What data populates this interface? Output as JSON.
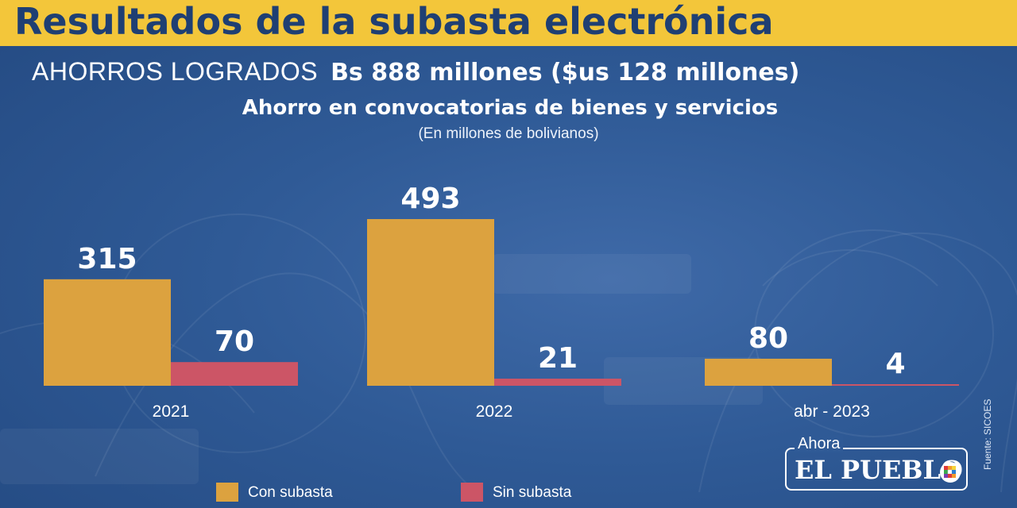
{
  "banner": {
    "title": "Resultados de la subasta electrónica"
  },
  "headline": {
    "label": "AHORROS LOGRADOS",
    "amount": "Bs  888 millones ($us 128 millones)"
  },
  "chart_data": {
    "type": "bar",
    "title": "Ahorro en convocatorias de bienes y servicios",
    "subtitle": "(En millones de bolivianos)",
    "categories": [
      "2021",
      "2022",
      "abr - 2023"
    ],
    "series": [
      {
        "name": "Con subasta",
        "values": [
          315,
          493,
          80
        ],
        "color": "#dca23f"
      },
      {
        "name": "Sin subasta",
        "values": [
          70,
          21,
          4
        ],
        "color": "#cc5566"
      }
    ],
    "data_labels": true,
    "grid": false,
    "legend": "bottom-left",
    "ylim": [
      0,
      493
    ]
  },
  "source": "Fuente: SICOES",
  "logo": {
    "prefix": "Ahora",
    "name": "EL PUEBLO"
  }
}
